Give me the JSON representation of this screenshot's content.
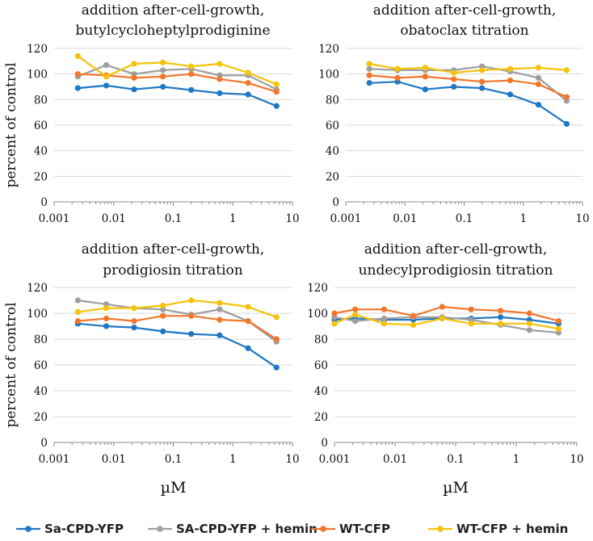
{
  "chart_data": [
    {
      "type": "line",
      "title_lines": [
        "addition after-cell-growth,",
        "butylcycloheptylprodiginine"
      ],
      "xlabel": "",
      "ylabel": "percent of control",
      "xscale": "log",
      "xlim": [
        0.001,
        10
      ],
      "ylim": [
        0,
        120
      ],
      "xticks": [
        "0.001",
        "0.01",
        "0.1",
        "1",
        "10"
      ],
      "yticks": [
        "0",
        "20",
        "40",
        "60",
        "80",
        "100",
        "120"
      ],
      "x": [
        0.0025,
        0.0075,
        0.022,
        0.067,
        0.2,
        0.6,
        1.8,
        5.4
      ],
      "series": [
        {
          "name": "Sa-CPD-YFP",
          "values": [
            89,
            91,
            88,
            90,
            87.5,
            85,
            84,
            75
          ]
        },
        {
          "name": "SA-CPD-YFP + hemin",
          "values": [
            98,
            107,
            100,
            103,
            104,
            99,
            99,
            88
          ]
        },
        {
          "name": "WT-CFP",
          "values": [
            100,
            99,
            97,
            98,
            100,
            96,
            93,
            86
          ]
        },
        {
          "name": "WT-CFP + hemin",
          "values": [
            114,
            98,
            108,
            109,
            106,
            108,
            101,
            92
          ]
        }
      ]
    },
    {
      "type": "line",
      "title_lines": [
        "addition after-cell-growth,",
        "obatoclax titration"
      ],
      "xlabel": "",
      "ylabel": "",
      "xscale": "log",
      "xlim": [
        0.001,
        10
      ],
      "ylim": [
        0,
        120
      ],
      "xticks": [
        "0.001",
        "0.01",
        "0.1",
        "1",
        "10"
      ],
      "yticks": [
        "0",
        "20",
        "40",
        "60",
        "80",
        "100",
        "120"
      ],
      "x": [
        0.0025,
        0.0075,
        0.022,
        0.067,
        0.2,
        0.6,
        1.8,
        5.4
      ],
      "series": [
        {
          "name": "Sa-CPD-YFP",
          "values": [
            93,
            94,
            88,
            90,
            89,
            84,
            76,
            61
          ]
        },
        {
          "name": "SA-CPD-YFP + hemin",
          "values": [
            104,
            103,
            103,
            103,
            106,
            102,
            97,
            79
          ]
        },
        {
          "name": "WT-CFP",
          "values": [
            99,
            97,
            98,
            96,
            94,
            95,
            92,
            82
          ]
        },
        {
          "name": "WT-CFP + hemin",
          "values": [
            108,
            104,
            105,
            101,
            103,
            104,
            105,
            103
          ]
        }
      ]
    },
    {
      "type": "line",
      "title_lines": [
        "addition after-cell-growth,",
        "prodigiosin titration"
      ],
      "xlabel": "µM",
      "ylabel": "percent of control",
      "xscale": "log",
      "xlim": [
        0.001,
        10
      ],
      "ylim": [
        0,
        120
      ],
      "xticks": [
        "0.001",
        "0.01",
        "0.1",
        "1",
        "10"
      ],
      "yticks": [
        "0",
        "20",
        "40",
        "60",
        "80",
        "100",
        "120"
      ],
      "x": [
        0.0025,
        0.0075,
        0.022,
        0.067,
        0.2,
        0.6,
        1.8,
        5.4
      ],
      "series": [
        {
          "name": "Sa-CPD-YFP",
          "values": [
            92,
            90,
            89,
            86,
            84,
            83,
            73,
            58
          ]
        },
        {
          "name": "SA-CPD-YFP + hemin",
          "values": [
            110,
            107,
            104,
            103,
            99,
            103,
            94,
            78
          ]
        },
        {
          "name": "WT-CFP",
          "values": [
            94,
            96,
            94,
            98,
            98,
            95,
            94,
            80
          ]
        },
        {
          "name": "WT-CFP + hemin",
          "values": [
            101,
            104,
            104,
            106,
            110,
            108,
            105,
            97
          ]
        }
      ]
    },
    {
      "type": "line",
      "title_lines": [
        "addition after-cell-growth,",
        "undecylprodigiosin titration"
      ],
      "xlabel": "µM",
      "ylabel": "",
      "xscale": "log",
      "xlim": [
        0.001,
        10
      ],
      "ylim": [
        0,
        120
      ],
      "xticks": [
        "0.001",
        "0.01",
        "0.1",
        "1",
        "10"
      ],
      "yticks": [
        "0",
        "20",
        "40",
        "60",
        "80",
        "100",
        "120"
      ],
      "x": [
        0.001,
        0.0022,
        0.0066,
        0.02,
        0.06,
        0.18,
        0.55,
        1.65,
        5.0
      ],
      "series": [
        {
          "name": "Sa-CPD-YFP",
          "values": [
            95,
            96,
            95,
            95,
            96,
            96,
            97,
            95,
            92
          ]
        },
        {
          "name": "SA-CPD-YFP + hemin",
          "values": [
            97,
            94,
            96,
            97,
            97,
            95,
            91,
            87,
            85
          ]
        },
        {
          "name": "WT-CFP",
          "values": [
            100,
            103,
            103,
            98,
            105,
            103,
            102,
            100,
            94
          ]
        },
        {
          "name": "WT-CFP + hemin",
          "values": [
            92,
            99,
            92,
            91,
            96,
            92,
            92,
            92,
            88
          ]
        }
      ]
    }
  ],
  "legend": [
    {
      "label": "Sa-CPD-YFP",
      "color": "#1f77c4"
    },
    {
      "label": "SA-CPD-YFP + hemin",
      "color": "#9e9e9e"
    },
    {
      "label": "WT-CFP",
      "color": "#f2772c"
    },
    {
      "label": "WT-CFP + hemin",
      "color": "#f5c20a"
    }
  ]
}
